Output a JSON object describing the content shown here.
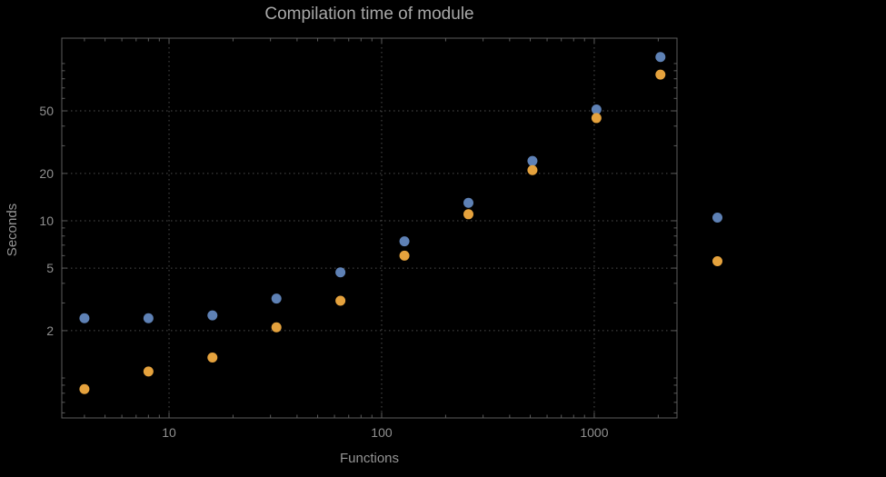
{
  "chart_data": {
    "type": "scatter",
    "title": "Compilation time of module",
    "xlabel": "Functions",
    "ylabel": "Seconds",
    "xscale": "log",
    "yscale": "log",
    "xlim": [
      3.13,
      2450
    ],
    "ylim": [
      0.557,
      145
    ],
    "grid": "dotted",
    "x": [
      4,
      8,
      16,
      32,
      64,
      128,
      256,
      512,
      1024,
      2048
    ],
    "series": [
      {
        "name": "series-1-blue",
        "color": "#5e81b5",
        "values": [
          2.4,
          2.4,
          2.5,
          3.2,
          4.7,
          7.4,
          13,
          24,
          51,
          110
        ]
      },
      {
        "name": "series-2-orange",
        "color": "#e5a23d",
        "values": [
          0.85,
          1.1,
          1.35,
          2.1,
          3.1,
          6.0,
          11,
          21,
          45,
          85
        ]
      }
    ],
    "x_ticks": [
      {
        "value": 10,
        "label": "10"
      },
      {
        "value": 100,
        "label": "100"
      },
      {
        "value": 1000,
        "label": "1000"
      }
    ],
    "y_ticks": [
      {
        "value": 2,
        "label": "2"
      },
      {
        "value": 5,
        "label": "5"
      },
      {
        "value": 10,
        "label": "10"
      },
      {
        "value": 20,
        "label": "20"
      },
      {
        "value": 50,
        "label": "50"
      }
    ],
    "x_minor_ticks": [
      4,
      5,
      6,
      7,
      8,
      9,
      20,
      30,
      40,
      50,
      60,
      70,
      80,
      90,
      200,
      300,
      400,
      500,
      600,
      700,
      800,
      900,
      2000
    ],
    "y_minor_ticks": [
      0.6,
      0.7,
      0.8,
      0.9,
      1,
      3,
      4,
      6,
      7,
      8,
      9,
      30,
      40,
      60,
      70,
      80,
      90,
      100
    ],
    "legend": {
      "position": "right-outside",
      "markers": [
        {
          "name": "series-1-marker",
          "color": "#5e81b5"
        },
        {
          "name": "series-2-marker",
          "color": "#e5a23d"
        }
      ]
    },
    "colors": {
      "background": "#000000",
      "frame": "#5c5c5c",
      "grid": "#4e4e4e",
      "tick_label": "#8f8f8f",
      "axis_label": "#949494",
      "title": "#a8a8a8"
    }
  }
}
